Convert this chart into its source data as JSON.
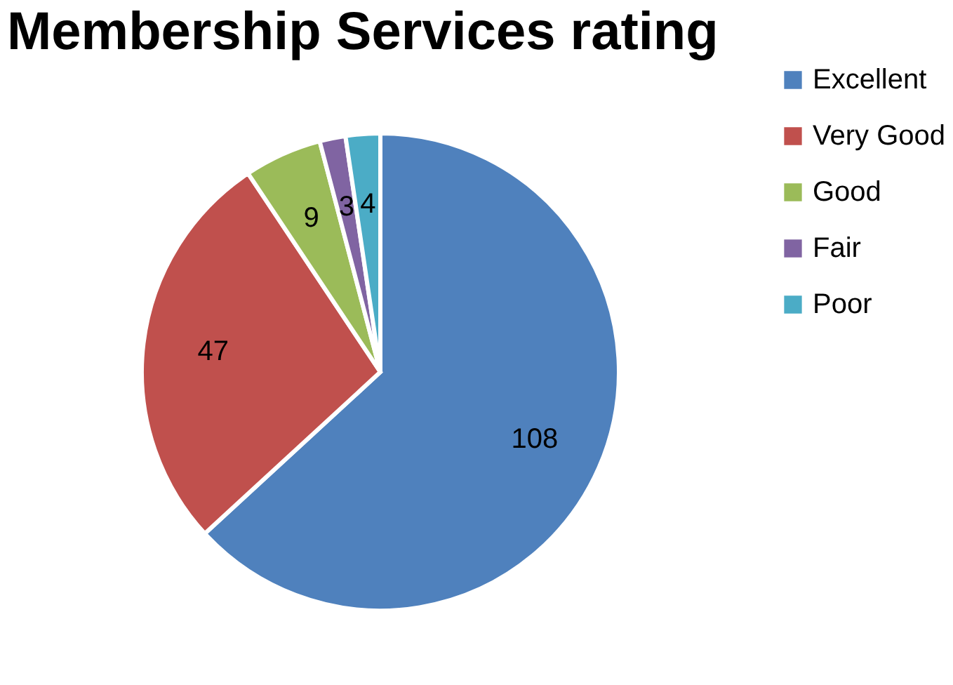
{
  "chart_data": {
    "type": "pie",
    "title": "Membership Services rating",
    "categories": [
      "Excellent",
      "Very Good",
      "Good",
      "Fair",
      "Poor"
    ],
    "values": [
      108,
      47,
      9,
      3,
      4
    ],
    "colors": [
      "#4f81bd",
      "#c0504d",
      "#9bbb59",
      "#8064a2",
      "#4bacc6"
    ],
    "data_labels": true,
    "legend": "right"
  }
}
